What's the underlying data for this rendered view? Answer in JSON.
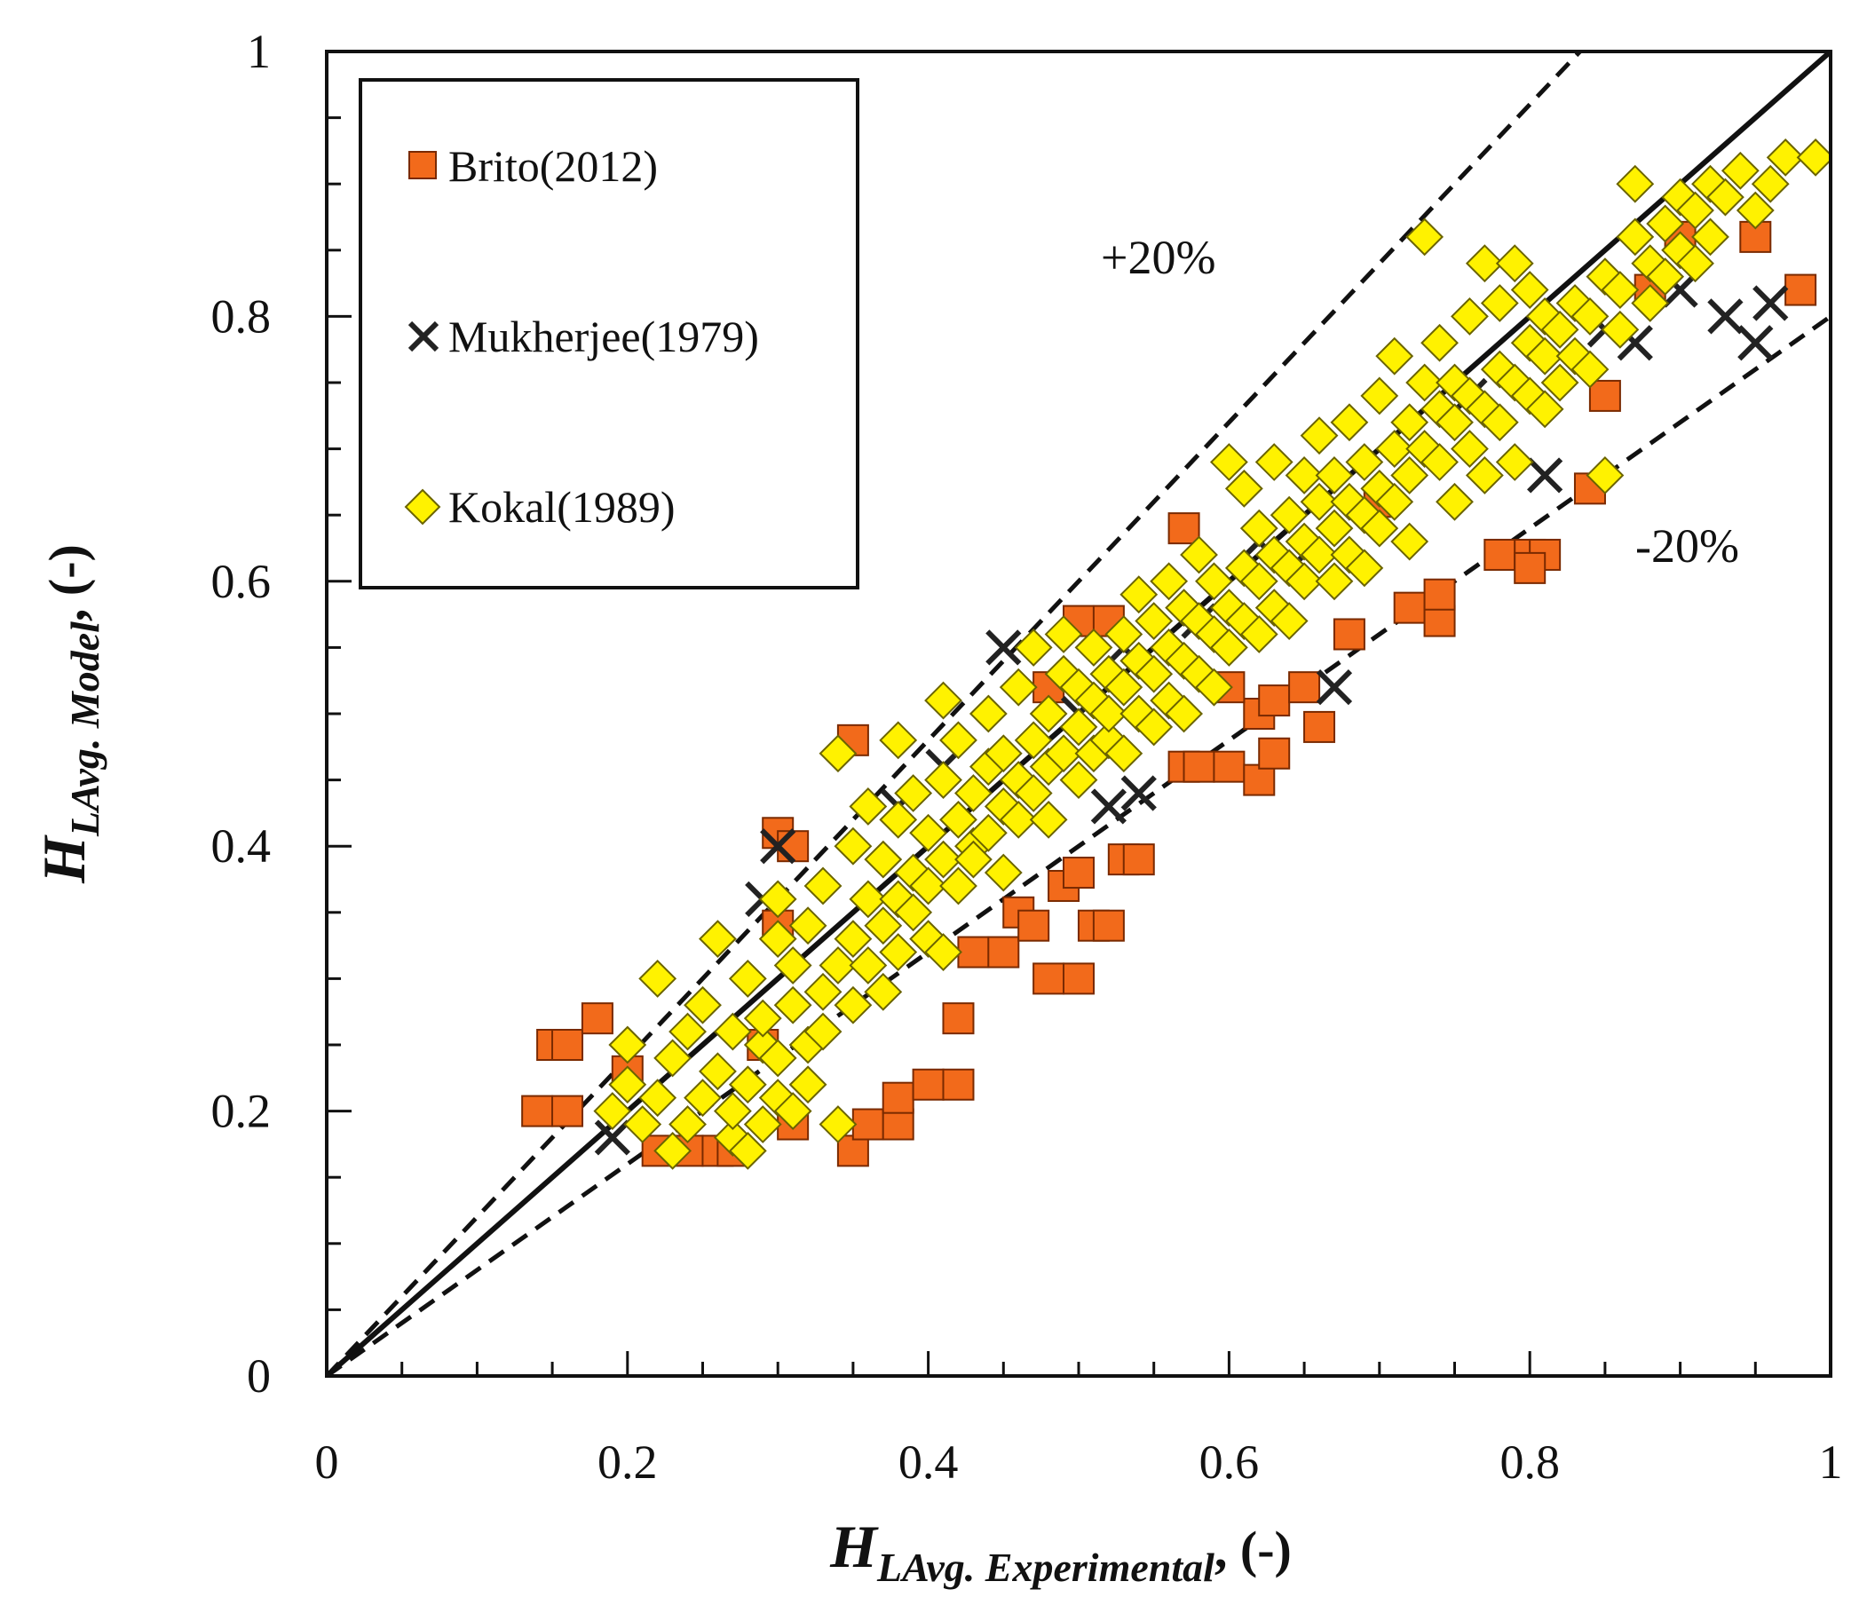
{
  "chart_data": {
    "type": "scatter",
    "title": "",
    "x_axis": {
      "symbol": "H",
      "subscript": "LAvg. Experimental",
      "unit": ", (-)",
      "range": [
        0,
        1
      ],
      "ticks": [
        0,
        0.2,
        0.4,
        0.6,
        0.8,
        1
      ],
      "tick_labels": [
        "0",
        "0.2",
        "0.4",
        "0.6",
        "0.8",
        "1"
      ]
    },
    "y_axis": {
      "symbol": "H",
      "subscript": "LAvg. Model",
      "unit": ", (-)",
      "range": [
        0,
        1
      ],
      "ticks": [
        0,
        0.2,
        0.4,
        0.6,
        0.8,
        1
      ],
      "tick_labels": [
        "0",
        "0.2",
        "0.4",
        "0.6",
        "0.8",
        "1"
      ]
    },
    "reference_lines": [
      {
        "name": "parity",
        "label": "",
        "slope": 1.0,
        "style": "solid"
      },
      {
        "name": "plus-20",
        "label": "+20%",
        "slope": 1.2,
        "style": "dashed"
      },
      {
        "name": "minus-20",
        "label": "-20%",
        "slope": 0.8,
        "style": "dashed"
      }
    ],
    "legend": {
      "position": "top-left",
      "entries": [
        "Brito(2012)",
        "Mukherjee(1979)",
        "Kokal(1989)"
      ]
    },
    "series": [
      {
        "name": "Brito(2012)",
        "marker": "square",
        "color": "#f26a1b",
        "points": [
          [
            0.14,
            0.2
          ],
          [
            0.16,
            0.2
          ],
          [
            0.15,
            0.25
          ],
          [
            0.16,
            0.25
          ],
          [
            0.18,
            0.27
          ],
          [
            0.2,
            0.23
          ],
          [
            0.22,
            0.17
          ],
          [
            0.24,
            0.17
          ],
          [
            0.26,
            0.17
          ],
          [
            0.27,
            0.17
          ],
          [
            0.29,
            0.25
          ],
          [
            0.31,
            0.19
          ],
          [
            0.3,
            0.34
          ],
          [
            0.3,
            0.41
          ],
          [
            0.31,
            0.4
          ],
          [
            0.35,
            0.17
          ],
          [
            0.36,
            0.19
          ],
          [
            0.38,
            0.19
          ],
          [
            0.38,
            0.21
          ],
          [
            0.4,
            0.22
          ],
          [
            0.42,
            0.22
          ],
          [
            0.42,
            0.27
          ],
          [
            0.35,
            0.48
          ],
          [
            0.43,
            0.32
          ],
          [
            0.45,
            0.32
          ],
          [
            0.46,
            0.35
          ],
          [
            0.47,
            0.34
          ],
          [
            0.48,
            0.3
          ],
          [
            0.5,
            0.3
          ],
          [
            0.49,
            0.37
          ],
          [
            0.5,
            0.38
          ],
          [
            0.51,
            0.34
          ],
          [
            0.52,
            0.34
          ],
          [
            0.53,
            0.39
          ],
          [
            0.54,
            0.39
          ],
          [
            0.48,
            0.52
          ],
          [
            0.5,
            0.57
          ],
          [
            0.52,
            0.57
          ],
          [
            0.57,
            0.64
          ],
          [
            0.57,
            0.46
          ],
          [
            0.58,
            0.46
          ],
          [
            0.6,
            0.46
          ],
          [
            0.62,
            0.45
          ],
          [
            0.62,
            0.5
          ],
          [
            0.63,
            0.47
          ],
          [
            0.63,
            0.51
          ],
          [
            0.65,
            0.52
          ],
          [
            0.66,
            0.49
          ],
          [
            0.6,
            0.52
          ],
          [
            0.68,
            0.56
          ],
          [
            0.72,
            0.58
          ],
          [
            0.74,
            0.57
          ],
          [
            0.74,
            0.59
          ],
          [
            0.78,
            0.62
          ],
          [
            0.8,
            0.62
          ],
          [
            0.81,
            0.62
          ],
          [
            0.8,
            0.61
          ],
          [
            0.84,
            0.67
          ],
          [
            0.85,
            0.74
          ],
          [
            0.88,
            0.82
          ],
          [
            0.9,
            0.86
          ],
          [
            0.95,
            0.86
          ],
          [
            0.98,
            0.82
          ],
          [
            0.7,
            0.66
          ]
        ]
      },
      {
        "name": "Mukherjee(1979)",
        "marker": "x",
        "color": "#222222",
        "points": [
          [
            0.19,
            0.18
          ],
          [
            0.29,
            0.36
          ],
          [
            0.3,
            0.4
          ],
          [
            0.38,
            0.43
          ],
          [
            0.41,
            0.46
          ],
          [
            0.45,
            0.55
          ],
          [
            0.5,
            0.5
          ],
          [
            0.52,
            0.43
          ],
          [
            0.54,
            0.44
          ],
          [
            0.53,
            0.55
          ],
          [
            0.58,
            0.57
          ],
          [
            0.62,
            0.63
          ],
          [
            0.65,
            0.62
          ],
          [
            0.67,
            0.52
          ],
          [
            0.76,
            0.74
          ],
          [
            0.81,
            0.68
          ],
          [
            0.85,
            0.79
          ],
          [
            0.87,
            0.78
          ],
          [
            0.9,
            0.82
          ],
          [
            0.93,
            0.8
          ],
          [
            0.95,
            0.78
          ],
          [
            0.96,
            0.81
          ]
        ]
      },
      {
        "name": "Kokal(1989)",
        "marker": "diamond",
        "color": "#fff200",
        "points": [
          [
            0.19,
            0.2
          ],
          [
            0.2,
            0.25
          ],
          [
            0.2,
            0.22
          ],
          [
            0.21,
            0.19
          ],
          [
            0.22,
            0.21
          ],
          [
            0.22,
            0.3
          ],
          [
            0.23,
            0.17
          ],
          [
            0.23,
            0.24
          ],
          [
            0.24,
            0.19
          ],
          [
            0.24,
            0.26
          ],
          [
            0.25,
            0.21
          ],
          [
            0.25,
            0.28
          ],
          [
            0.26,
            0.33
          ],
          [
            0.26,
            0.23
          ],
          [
            0.27,
            0.18
          ],
          [
            0.27,
            0.26
          ],
          [
            0.27,
            0.2
          ],
          [
            0.28,
            0.22
          ],
          [
            0.28,
            0.3
          ],
          [
            0.28,
            0.17
          ],
          [
            0.29,
            0.25
          ],
          [
            0.29,
            0.19
          ],
          [
            0.29,
            0.27
          ],
          [
            0.3,
            0.21
          ],
          [
            0.3,
            0.33
          ],
          [
            0.3,
            0.36
          ],
          [
            0.3,
            0.24
          ],
          [
            0.31,
            0.28
          ],
          [
            0.31,
            0.2
          ],
          [
            0.31,
            0.31
          ],
          [
            0.32,
            0.25
          ],
          [
            0.32,
            0.34
          ],
          [
            0.32,
            0.22
          ],
          [
            0.33,
            0.29
          ],
          [
            0.33,
            0.37
          ],
          [
            0.33,
            0.26
          ],
          [
            0.34,
            0.31
          ],
          [
            0.34,
            0.19
          ],
          [
            0.34,
            0.47
          ],
          [
            0.35,
            0.33
          ],
          [
            0.35,
            0.4
          ],
          [
            0.35,
            0.28
          ],
          [
            0.36,
            0.36
          ],
          [
            0.36,
            0.31
          ],
          [
            0.36,
            0.43
          ],
          [
            0.37,
            0.34
          ],
          [
            0.37,
            0.39
          ],
          [
            0.37,
            0.29
          ],
          [
            0.38,
            0.48
          ],
          [
            0.38,
            0.36
          ],
          [
            0.38,
            0.42
          ],
          [
            0.38,
            0.32
          ],
          [
            0.39,
            0.38
          ],
          [
            0.39,
            0.35
          ],
          [
            0.39,
            0.44
          ],
          [
            0.4,
            0.41
          ],
          [
            0.4,
            0.33
          ],
          [
            0.4,
            0.37
          ],
          [
            0.41,
            0.39
          ],
          [
            0.41,
            0.45
          ],
          [
            0.41,
            0.32
          ],
          [
            0.41,
            0.51
          ],
          [
            0.42,
            0.42
          ],
          [
            0.42,
            0.37
          ],
          [
            0.42,
            0.48
          ],
          [
            0.43,
            0.44
          ],
          [
            0.43,
            0.4
          ],
          [
            0.43,
            0.39
          ],
          [
            0.44,
            0.46
          ],
          [
            0.44,
            0.41
          ],
          [
            0.44,
            0.5
          ],
          [
            0.45,
            0.43
          ],
          [
            0.45,
            0.47
          ],
          [
            0.45,
            0.38
          ],
          [
            0.46,
            0.45
          ],
          [
            0.46,
            0.42
          ],
          [
            0.46,
            0.52
          ],
          [
            0.47,
            0.48
          ],
          [
            0.47,
            0.44
          ],
          [
            0.47,
            0.55
          ],
          [
            0.48,
            0.46
          ],
          [
            0.48,
            0.5
          ],
          [
            0.48,
            0.42
          ],
          [
            0.49,
            0.53
          ],
          [
            0.49,
            0.47
          ],
          [
            0.49,
            0.56
          ],
          [
            0.5,
            0.49
          ],
          [
            0.5,
            0.45
          ],
          [
            0.5,
            0.52
          ],
          [
            0.51,
            0.51
          ],
          [
            0.51,
            0.47
          ],
          [
            0.51,
            0.55
          ],
          [
            0.52,
            0.48
          ],
          [
            0.52,
            0.53
          ],
          [
            0.52,
            0.5
          ],
          [
            0.53,
            0.56
          ],
          [
            0.53,
            0.52
          ],
          [
            0.53,
            0.47
          ],
          [
            0.54,
            0.54
          ],
          [
            0.54,
            0.5
          ],
          [
            0.54,
            0.59
          ],
          [
            0.55,
            0.53
          ],
          [
            0.55,
            0.49
          ],
          [
            0.55,
            0.57
          ],
          [
            0.56,
            0.55
          ],
          [
            0.56,
            0.51
          ],
          [
            0.56,
            0.6
          ],
          [
            0.57,
            0.54
          ],
          [
            0.57,
            0.58
          ],
          [
            0.57,
            0.5
          ],
          [
            0.58,
            0.57
          ],
          [
            0.58,
            0.53
          ],
          [
            0.58,
            0.62
          ],
          [
            0.59,
            0.56
          ],
          [
            0.59,
            0.6
          ],
          [
            0.59,
            0.52
          ],
          [
            0.6,
            0.58
          ],
          [
            0.6,
            0.55
          ],
          [
            0.6,
            0.69
          ],
          [
            0.61,
            0.61
          ],
          [
            0.61,
            0.57
          ],
          [
            0.61,
            0.67
          ],
          [
            0.62,
            0.6
          ],
          [
            0.62,
            0.56
          ],
          [
            0.62,
            0.64
          ],
          [
            0.63,
            0.62
          ],
          [
            0.63,
            0.58
          ],
          [
            0.63,
            0.69
          ],
          [
            0.64,
            0.61
          ],
          [
            0.64,
            0.65
          ],
          [
            0.64,
            0.57
          ],
          [
            0.65,
            0.63
          ],
          [
            0.65,
            0.68
          ],
          [
            0.65,
            0.6
          ],
          [
            0.66,
            0.66
          ],
          [
            0.66,
            0.62
          ],
          [
            0.66,
            0.71
          ],
          [
            0.67,
            0.64
          ],
          [
            0.67,
            0.6
          ],
          [
            0.67,
            0.68
          ],
          [
            0.68,
            0.66
          ],
          [
            0.68,
            0.62
          ],
          [
            0.68,
            0.72
          ],
          [
            0.69,
            0.65
          ],
          [
            0.69,
            0.69
          ],
          [
            0.69,
            0.61
          ],
          [
            0.7,
            0.67
          ],
          [
            0.7,
            0.64
          ],
          [
            0.7,
            0.74
          ],
          [
            0.71,
            0.7
          ],
          [
            0.71,
            0.66
          ],
          [
            0.71,
            0.77
          ],
          [
            0.72,
            0.68
          ],
          [
            0.72,
            0.72
          ],
          [
            0.72,
            0.63
          ],
          [
            0.73,
            0.7
          ],
          [
            0.73,
            0.75
          ],
          [
            0.73,
            0.86
          ],
          [
            0.74,
            0.73
          ],
          [
            0.74,
            0.69
          ],
          [
            0.74,
            0.78
          ],
          [
            0.75,
            0.72
          ],
          [
            0.75,
            0.66
          ],
          [
            0.75,
            0.75
          ],
          [
            0.76,
            0.74
          ],
          [
            0.76,
            0.7
          ],
          [
            0.76,
            0.8
          ],
          [
            0.77,
            0.73
          ],
          [
            0.77,
            0.84
          ],
          [
            0.77,
            0.68
          ],
          [
            0.78,
            0.76
          ],
          [
            0.78,
            0.72
          ],
          [
            0.78,
            0.81
          ],
          [
            0.79,
            0.75
          ],
          [
            0.79,
            0.69
          ],
          [
            0.79,
            0.84
          ],
          [
            0.8,
            0.78
          ],
          [
            0.8,
            0.74
          ],
          [
            0.8,
            0.82
          ],
          [
            0.81,
            0.77
          ],
          [
            0.81,
            0.73
          ],
          [
            0.81,
            0.8
          ],
          [
            0.82,
            0.79
          ],
          [
            0.82,
            0.75
          ],
          [
            0.83,
            0.81
          ],
          [
            0.83,
            0.77
          ],
          [
            0.84,
            0.8
          ],
          [
            0.84,
            0.76
          ],
          [
            0.85,
            0.83
          ],
          [
            0.85,
            0.68
          ],
          [
            0.86,
            0.82
          ],
          [
            0.86,
            0.79
          ],
          [
            0.87,
            0.86
          ],
          [
            0.87,
            0.9
          ],
          [
            0.88,
            0.84
          ],
          [
            0.88,
            0.81
          ],
          [
            0.89,
            0.87
          ],
          [
            0.89,
            0.83
          ],
          [
            0.9,
            0.89
          ],
          [
            0.9,
            0.85
          ],
          [
            0.91,
            0.88
          ],
          [
            0.91,
            0.84
          ],
          [
            0.92,
            0.9
          ],
          [
            0.92,
            0.86
          ],
          [
            0.93,
            0.89
          ],
          [
            0.94,
            0.91
          ],
          [
            0.95,
            0.88
          ],
          [
            0.96,
            0.9
          ],
          [
            0.97,
            0.92
          ],
          [
            0.99,
            0.92
          ]
        ]
      }
    ]
  }
}
